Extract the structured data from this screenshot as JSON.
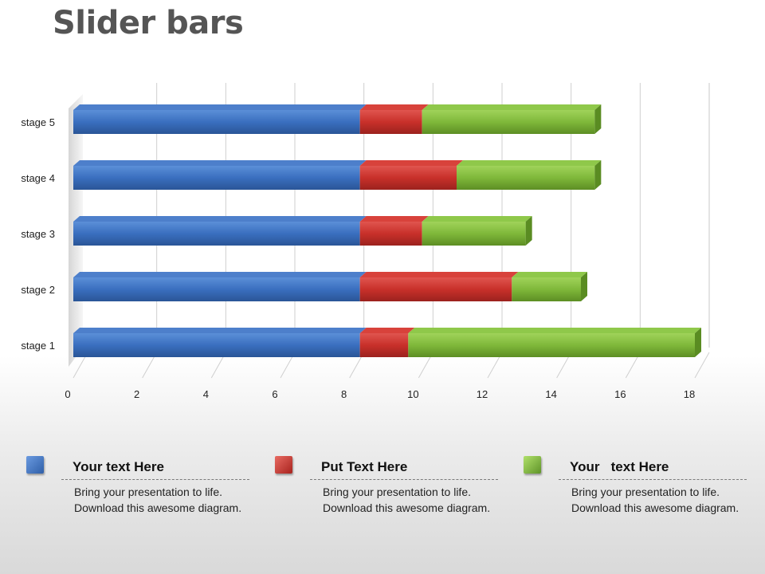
{
  "title": "Slider bars",
  "colors": {
    "blue": "#3a6fbf",
    "red": "#c8302a",
    "green": "#7fb83a"
  },
  "chart_data": {
    "type": "bar",
    "orientation": "horizontal",
    "stacked": true,
    "categories": [
      "stage 1",
      "stage 2",
      "stage 3",
      "stage 4",
      "stage 5"
    ],
    "series": [
      {
        "color": "#3a6fbf",
        "values": [
          8.3,
          8.3,
          8.3,
          8.3,
          8.3
        ]
      },
      {
        "color": "#c8302a",
        "values": [
          1.4,
          4.4,
          1.8,
          2.8,
          1.8
        ]
      },
      {
        "color": "#7fb83a",
        "values": [
          8.3,
          2.0,
          3.0,
          4.0,
          5.0
        ]
      }
    ],
    "xlim": [
      0,
      18
    ],
    "xticks": [
      0,
      2,
      4,
      6,
      8,
      10,
      12,
      14,
      16,
      18
    ],
    "grid": true
  },
  "legend": [
    {
      "icon": "blue-square-icon",
      "color": "#3a6fbf",
      "heading": "Your text Here",
      "body": "Bring your presentation to life. Download this awesome diagram."
    },
    {
      "icon": "red-square-icon",
      "color": "#c8302a",
      "heading": "Put Text Here",
      "body": "Bring your presentation to life. Download this awesome diagram."
    },
    {
      "icon": "green-square-icon",
      "color": "#7fb83a",
      "heading": "Your   text Here",
      "body": "Bring your presentation to life. Download this awesome diagram."
    }
  ]
}
